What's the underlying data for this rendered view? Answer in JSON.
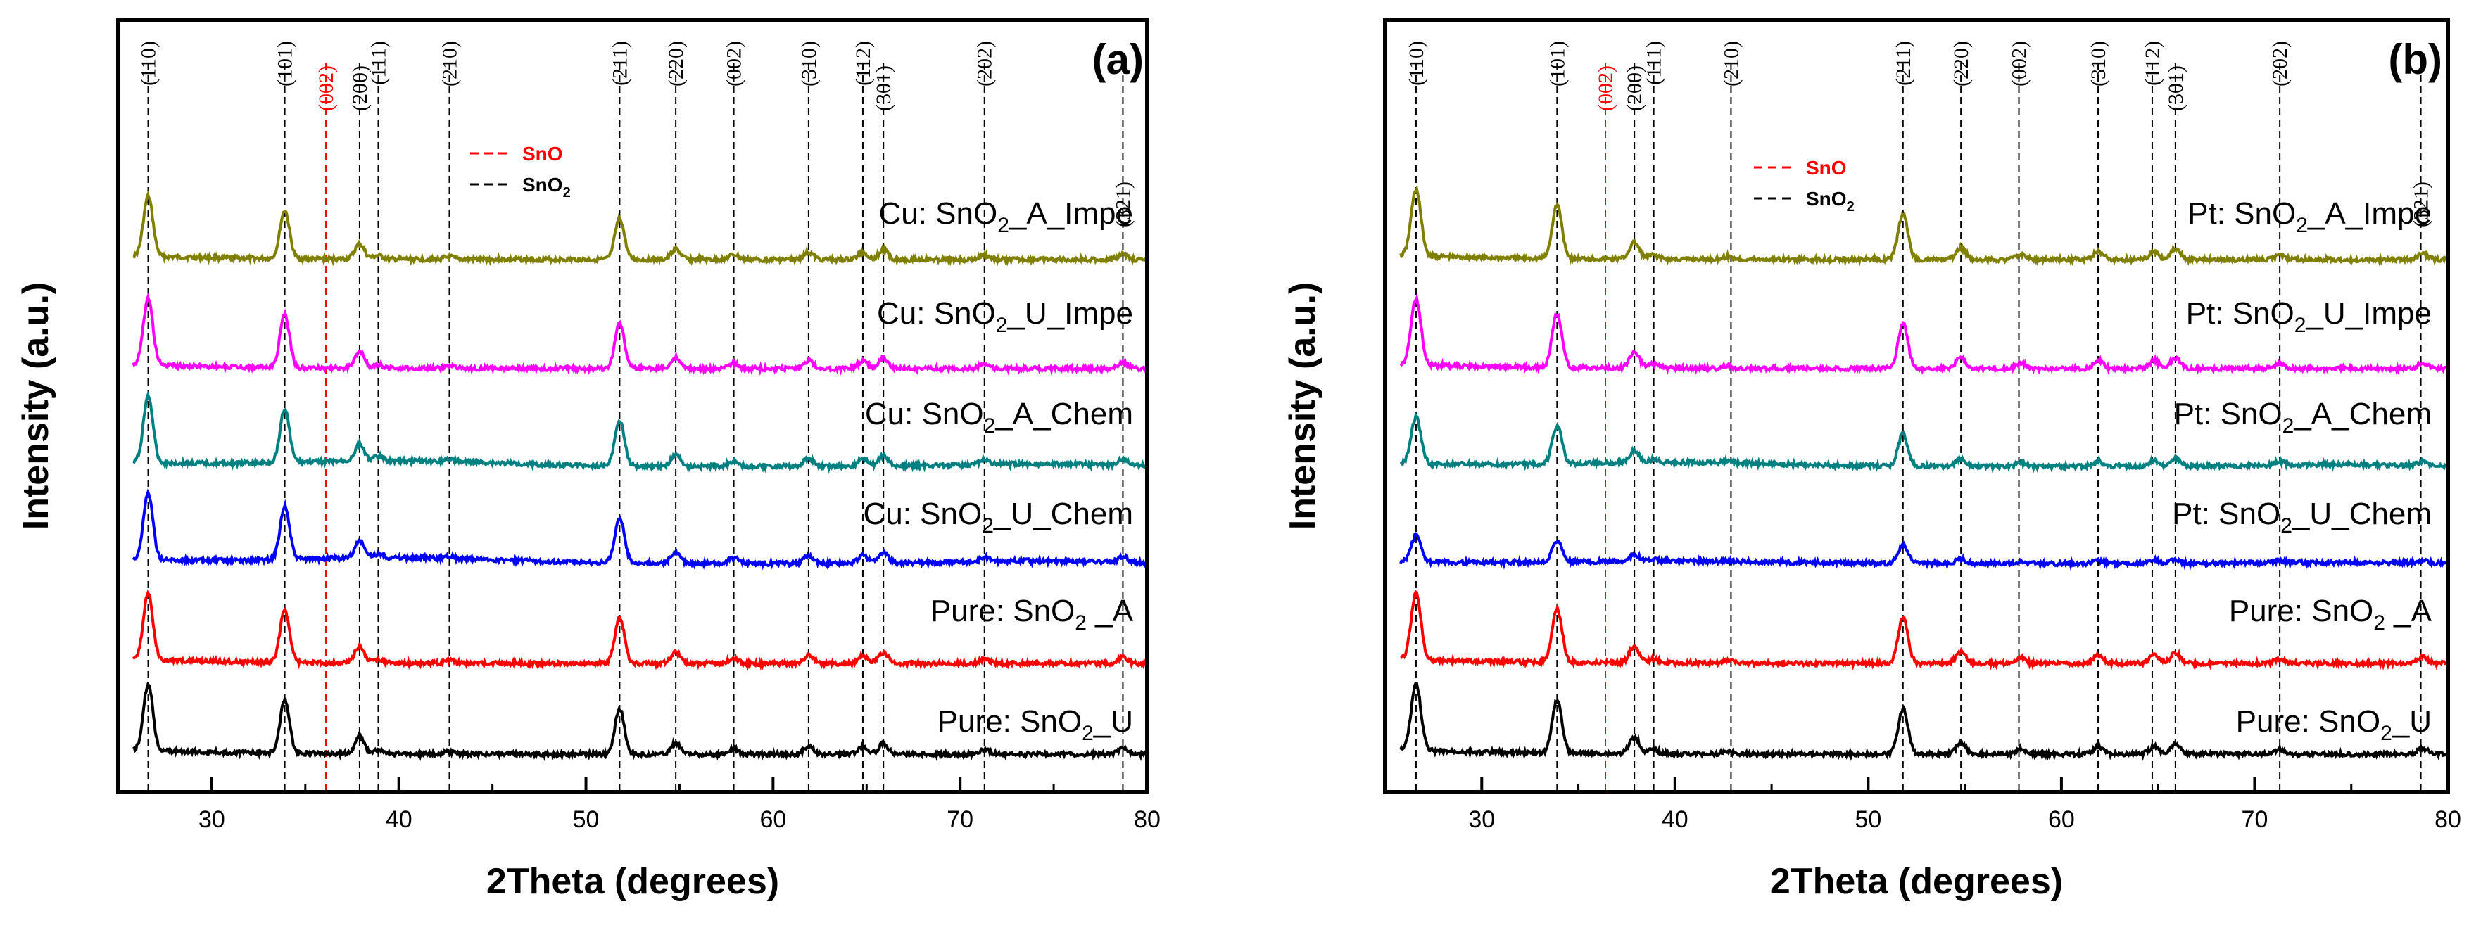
{
  "chart_data": [
    {
      "type": "line",
      "panel": "(a)",
      "xlabel": "2Theta (degrees)",
      "ylabel": "Intensity (a.u.)",
      "xlim": [
        25,
        80
      ],
      "xticks": [
        30,
        40,
        50,
        60,
        70,
        80
      ],
      "y_ticks_shown": false,
      "legend": [
        {
          "label": "SnO",
          "color": "#ff0000",
          "style": "dashed"
        },
        {
          "label": "SnO",
          "sub": "2",
          "color": "#000000",
          "style": "dashed"
        }
      ],
      "reference_lines": [
        {
          "label": "(110)",
          "x": 26.6,
          "color": "#000000"
        },
        {
          "label": "(101)",
          "x": 33.9,
          "color": "#000000"
        },
        {
          "label": "(002)",
          "x": 36.1,
          "color": "#ff0000"
        },
        {
          "label": "(200)",
          "x": 37.9,
          "color": "#000000"
        },
        {
          "label": "(111)",
          "x": 38.9,
          "color": "#000000"
        },
        {
          "label": "(210)",
          "x": 42.7,
          "color": "#000000"
        },
        {
          "label": "(211)",
          "x": 51.8,
          "color": "#000000"
        },
        {
          "label": "(220)",
          "x": 54.8,
          "color": "#000000"
        },
        {
          "label": "(002)",
          "x": 57.9,
          "color": "#000000"
        },
        {
          "label": "(310)",
          "x": 61.9,
          "color": "#000000"
        },
        {
          "label": "(112)",
          "x": 64.8,
          "color": "#000000"
        },
        {
          "label": "(301)",
          "x": 65.9,
          "color": "#000000"
        },
        {
          "label": "(202)",
          "x": 71.3,
          "color": "#000000"
        },
        {
          "label": "(321)",
          "x": 78.7,
          "color": "#000000"
        }
      ],
      "series": [
        {
          "prefix": "Cu: SnO",
          "sub": "2",
          "suffix": "_A_Impe",
          "color": "#808000",
          "offset": 5,
          "peak_scale": 0.9
        },
        {
          "prefix": "Cu: SnO",
          "sub": "2",
          "suffix": "_U_Impe",
          "color": "#ff00ff",
          "offset": 4,
          "peak_scale": 1.0
        },
        {
          "prefix": "Cu: SnO",
          "sub": "2",
          "suffix": "_A_Chem",
          "color": "#008080",
          "offset": 3,
          "peak_scale": 1.0
        },
        {
          "prefix": "Cu: SnO",
          "sub": "2",
          "suffix": "_U_Chem",
          "color": "#0000ff",
          "offset": 2,
          "peak_scale": 1.0
        },
        {
          "prefix": "Pure: SnO",
          "sub": "2",
          "suffix": " _A",
          "color": "#ff0000",
          "offset": 1,
          "peak_scale": 1.0
        },
        {
          "prefix": "Pure: SnO",
          "sub": "2",
          "suffix": "_U",
          "color": "#000000",
          "offset": 0,
          "peak_scale": 1.0
        }
      ]
    },
    {
      "type": "line",
      "panel": "(b)",
      "xlabel": "2Theta (degrees)",
      "ylabel": "Intensity (a.u.)",
      "xlim": [
        25,
        80
      ],
      "xticks": [
        30,
        40,
        50,
        60,
        70,
        80
      ],
      "y_ticks_shown": false,
      "legend": [
        {
          "label": "SnO",
          "color": "#ff0000",
          "style": "dashed"
        },
        {
          "label": "SnO",
          "sub": "2",
          "color": "#000000",
          "style": "dashed"
        }
      ],
      "reference_lines": [
        {
          "label": "(110)",
          "x": 26.6,
          "color": "#000000"
        },
        {
          "label": "(101)",
          "x": 33.9,
          "color": "#000000"
        },
        {
          "label": "(002)",
          "x": 36.4,
          "color": "#ff0000"
        },
        {
          "label": "(200)",
          "x": 37.9,
          "color": "#000000"
        },
        {
          "label": "(111)",
          "x": 38.9,
          "color": "#000000"
        },
        {
          "label": "(210)",
          "x": 42.9,
          "color": "#000000"
        },
        {
          "label": "(211)",
          "x": 51.8,
          "color": "#000000"
        },
        {
          "label": "(220)",
          "x": 54.8,
          "color": "#000000"
        },
        {
          "label": "(002)",
          "x": 57.8,
          "color": "#000000"
        },
        {
          "label": "(310)",
          "x": 61.9,
          "color": "#000000"
        },
        {
          "label": "(112)",
          "x": 64.7,
          "color": "#000000"
        },
        {
          "label": "(301)",
          "x": 65.9,
          "color": "#000000"
        },
        {
          "label": "(202)",
          "x": 71.3,
          "color": "#000000"
        },
        {
          "label": "(321)",
          "x": 78.6,
          "color": "#000000"
        }
      ],
      "series": [
        {
          "prefix": "Pt: SnO",
          "sub": "2",
          "suffix": "_A_Impe",
          "color": "#808000",
          "offset": 5,
          "peak_scale": 1.0
        },
        {
          "prefix": "Pt: SnO",
          "sub": "2",
          "suffix": "_U_Impe",
          "color": "#ff00ff",
          "offset": 4,
          "peak_scale": 1.0
        },
        {
          "prefix": "Pt: SnO",
          "sub": "2",
          "suffix": "_A_Chem",
          "color": "#008080",
          "offset": 3,
          "peak_scale": 0.7
        },
        {
          "prefix": "Pt: SnO",
          "sub": "2",
          "suffix": "_U_Chem",
          "color": "#0000ff",
          "offset": 2,
          "peak_scale": 0.4
        },
        {
          "prefix": "Pure: SnO",
          "sub": "2",
          "suffix": " _A",
          "color": "#ff0000",
          "offset": 1,
          "peak_scale": 1.0
        },
        {
          "prefix": "Pure: SnO",
          "sub": "2",
          "suffix": "_U",
          "color": "#000000",
          "offset": 0,
          "peak_scale": 1.0
        }
      ]
    }
  ]
}
